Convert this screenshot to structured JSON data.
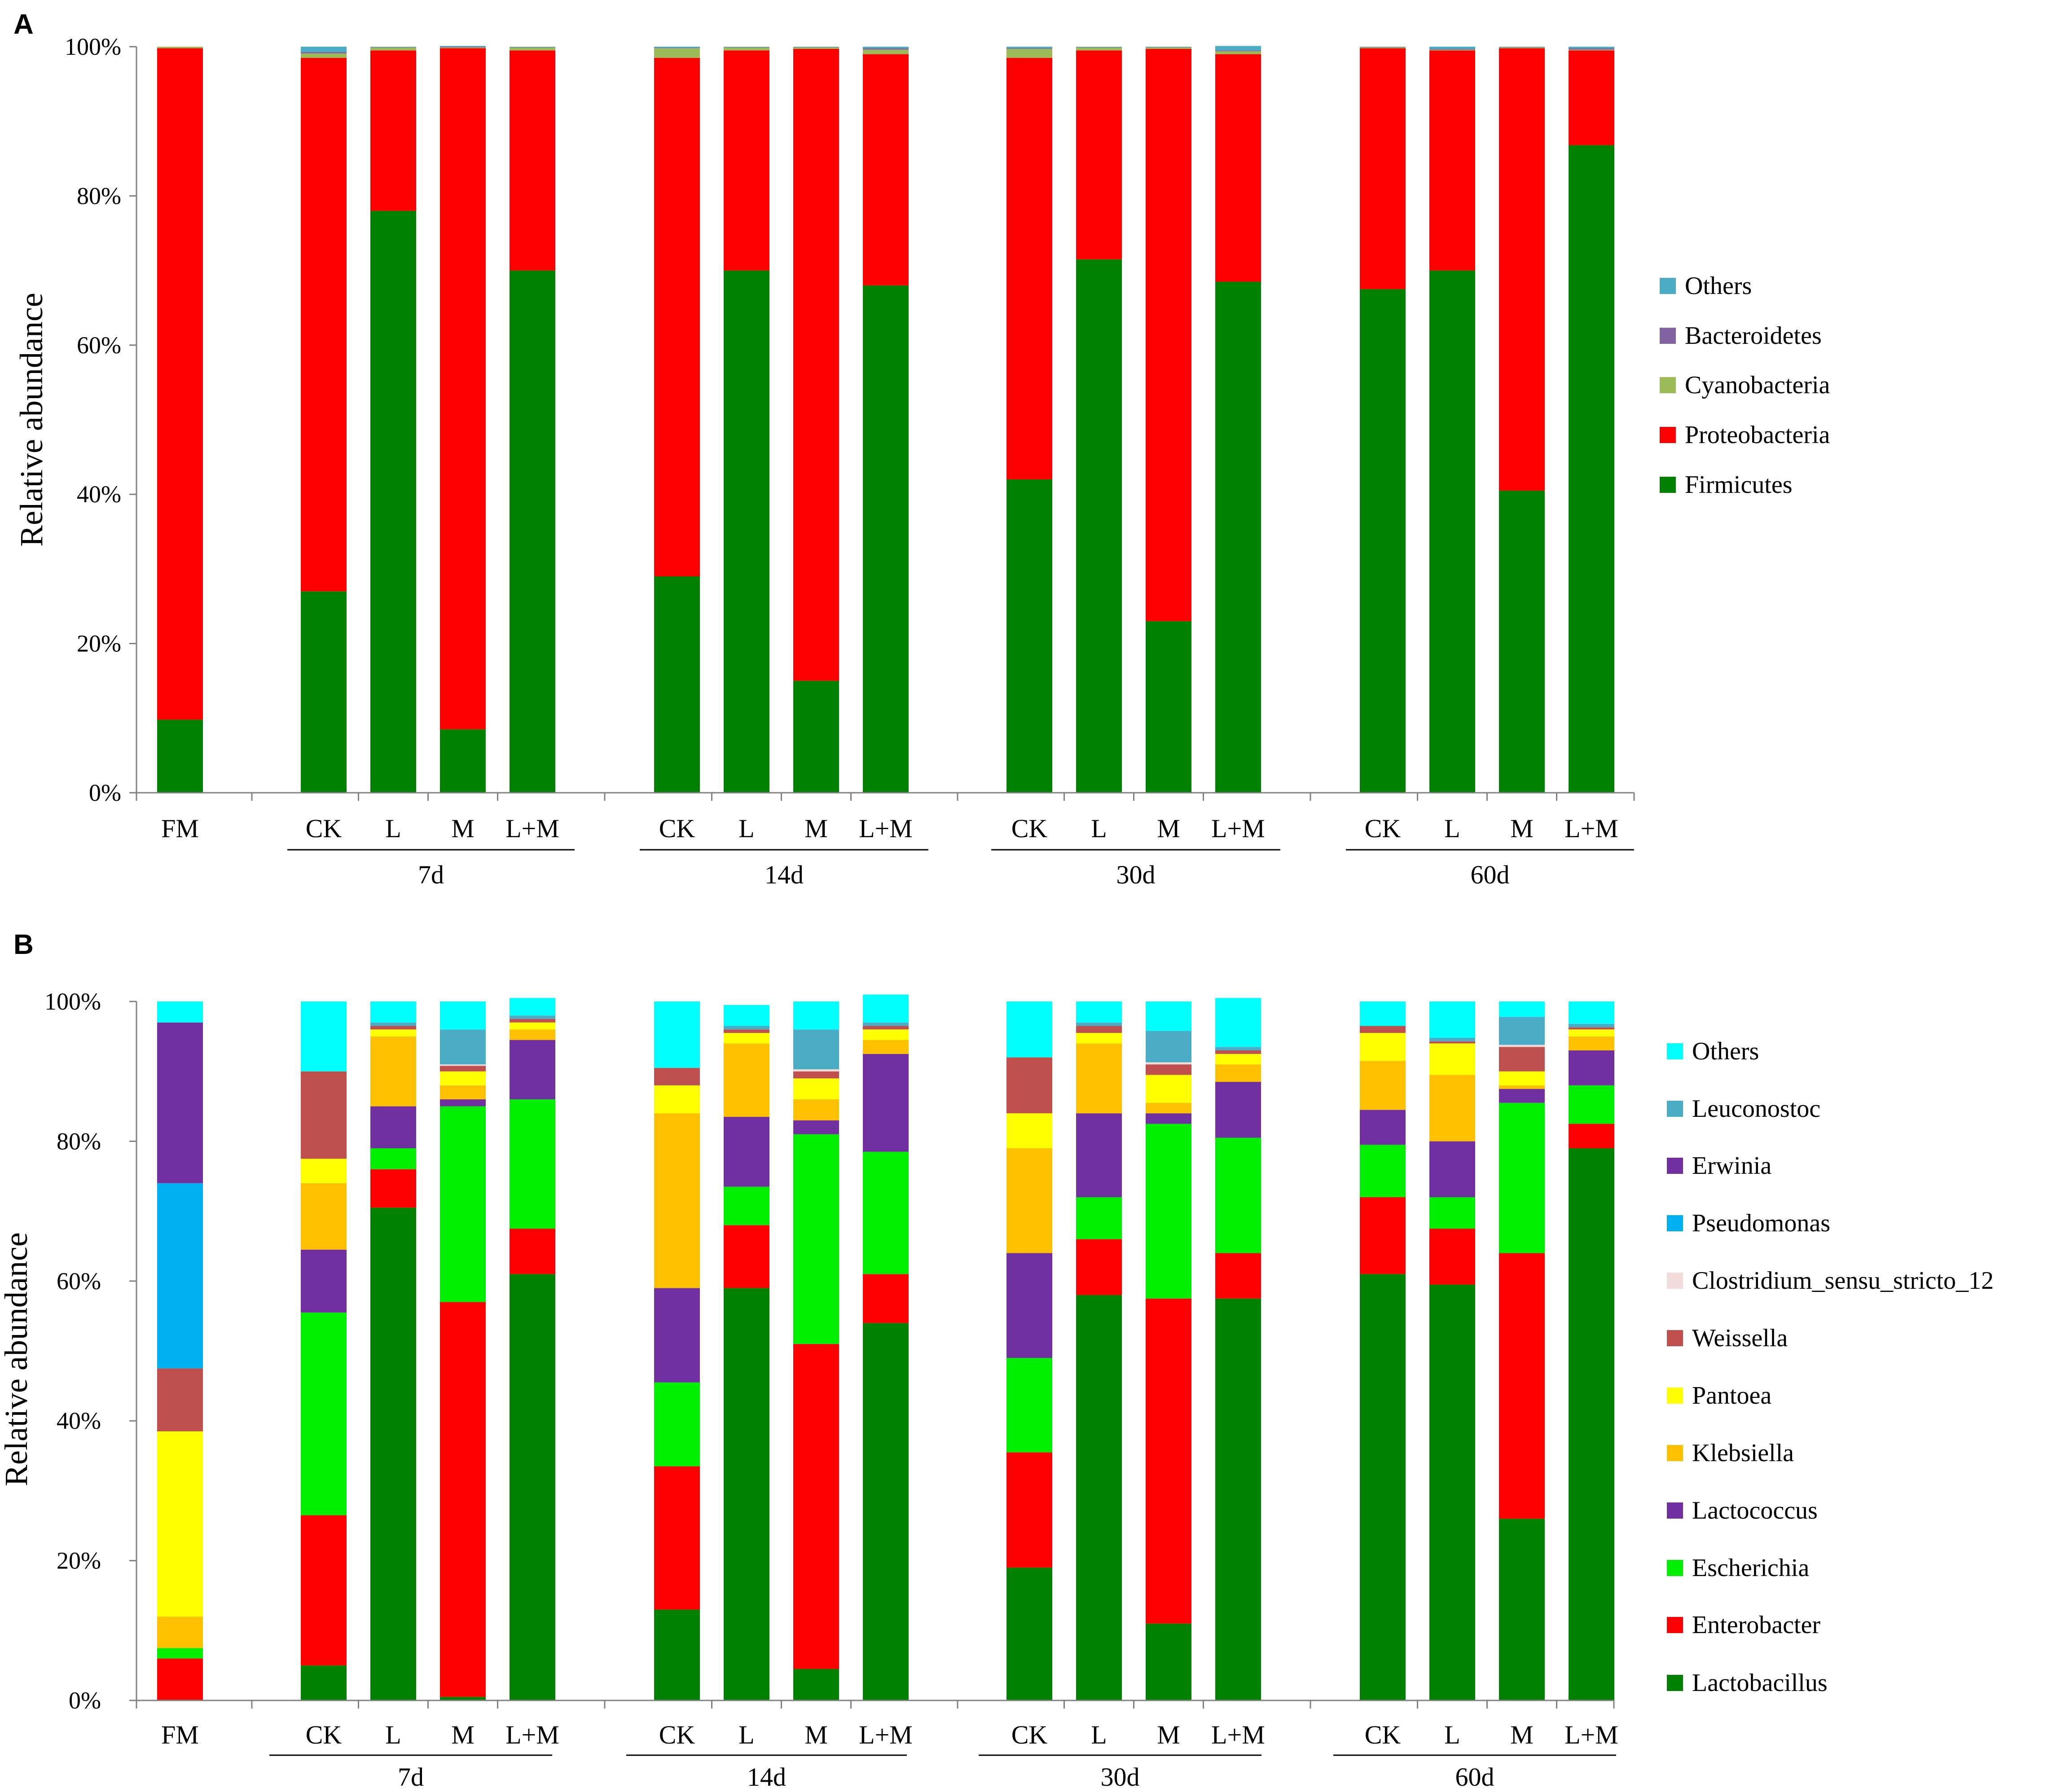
{
  "chart_data": [
    {
      "panel_label": "A",
      "type": "bar",
      "stacked": true,
      "ylabel": "Relative abundance",
      "ylim": [
        0,
        100
      ],
      "yticks": [
        "0%",
        "20%",
        "40%",
        "60%",
        "80%",
        "100%"
      ],
      "categories": [
        "FM",
        "CK",
        "L",
        "M",
        "L+M",
        "CK",
        "L",
        "M",
        "L+M",
        "CK",
        "L",
        "M",
        "L+M",
        "CK",
        "L",
        "M",
        "L+M"
      ],
      "groups": [
        {
          "label": "",
          "members": [
            0
          ]
        },
        {
          "label": "7d",
          "members": [
            1,
            2,
            3,
            4
          ]
        },
        {
          "label": "14d",
          "members": [
            5,
            6,
            7,
            8
          ]
        },
        {
          "label": "30d",
          "members": [
            9,
            10,
            11,
            12
          ]
        },
        {
          "label": "60d",
          "members": [
            13,
            14,
            15,
            16
          ]
        }
      ],
      "legend_position": "right",
      "legend_order": [
        "Others",
        "Bacteroidetes",
        "Cyanobacteria",
        "Proteobacteria",
        "Firmicutes"
      ],
      "series": [
        {
          "name": "Firmicutes",
          "color": "#008000",
          "values": [
            9.8,
            27,
            78,
            8.5,
            70,
            29,
            70,
            15,
            68,
            42,
            71.5,
            23,
            68.5,
            67.5,
            70,
            40.5,
            86.8
          ]
        },
        {
          "name": "Proteobacteria",
          "color": "#ff0000",
          "values": [
            90,
            71.5,
            21.5,
            91.3,
            29.5,
            69.5,
            29.5,
            84.7,
            31,
            56.5,
            28,
            76.7,
            30.5,
            32.3,
            29.5,
            59.3,
            12.7
          ]
        },
        {
          "name": "Cyanobacteria",
          "color": "#9bbb59",
          "values": [
            0.2,
            0.6,
            0.4,
            0.1,
            0.4,
            1.3,
            0.4,
            0.2,
            0.6,
            1.2,
            0.4,
            0.2,
            0.4,
            0.1,
            0.1,
            0.1,
            0.1
          ]
        },
        {
          "name": "Bacteroidetes",
          "color": "#8064a2",
          "values": [
            0,
            0.2,
            0.05,
            0.1,
            0.05,
            0.05,
            0.05,
            0.05,
            0.2,
            0.1,
            0.05,
            0.05,
            0.1,
            0.05,
            0.1,
            0.05,
            0.2
          ]
        },
        {
          "name": "Others",
          "color": "#4bacc6",
          "values": [
            0,
            0.7,
            0.05,
            0.1,
            0.05,
            0.15,
            0.05,
            0.05,
            0.2,
            0.2,
            0.05,
            0.05,
            0.6,
            0.05,
            0.3,
            0.05,
            0.2
          ]
        }
      ]
    },
    {
      "panel_label": "B",
      "type": "bar",
      "stacked": true,
      "ylabel": "Relative abundance",
      "ylim": [
        0,
        100
      ],
      "yticks": [
        "0%",
        "20%",
        "40%",
        "60%",
        "80%",
        "100%"
      ],
      "categories": [
        "FM",
        "CK",
        "L",
        "M",
        "L+M",
        "CK",
        "L",
        "M",
        "L+M",
        "CK",
        "L",
        "M",
        "L+M",
        "CK",
        "L",
        "M",
        "L+M"
      ],
      "groups": [
        {
          "label": "",
          "members": [
            0
          ]
        },
        {
          "label": "7d",
          "members": [
            1,
            2,
            3,
            4
          ]
        },
        {
          "label": "14d",
          "members": [
            5,
            6,
            7,
            8
          ]
        },
        {
          "label": "30d",
          "members": [
            9,
            10,
            11,
            12
          ]
        },
        {
          "label": "60d",
          "members": [
            13,
            14,
            15,
            16
          ]
        }
      ],
      "legend_position": "right",
      "legend_order": [
        "Others",
        "Leuconostoc",
        "Erwinia",
        "Pseudomonas",
        "Clostridium_sensu_stricto_12",
        "Weissella",
        "Pantoea",
        "Klebsiella",
        "Lactococcus",
        "Escherichia",
        "Enterobacter",
        "Lactobacillus"
      ],
      "series": [
        {
          "name": "Lactobacillus",
          "color": "#008000",
          "values": [
            0,
            5,
            70.5,
            0.5,
            61,
            13,
            59,
            4.5,
            54,
            19,
            58,
            11,
            57.5,
            61,
            59.5,
            26,
            79
          ]
        },
        {
          "name": "Enterobacter",
          "color": "#ff0000",
          "values": [
            6,
            21.5,
            5.5,
            56.5,
            6.5,
            20.5,
            9,
            46.5,
            7,
            16.5,
            8,
            46.5,
            6.5,
            11,
            8,
            38,
            3.5
          ]
        },
        {
          "name": "Escherichia",
          "color": "#00ee00",
          "values": [
            1.5,
            29,
            3,
            28,
            18.5,
            12,
            5.5,
            30,
            17.5,
            13.5,
            6,
            25,
            16.5,
            7.5,
            4.5,
            21.5,
            5.5
          ]
        },
        {
          "name": "Lactococcus",
          "color": "#7030a0",
          "values": [
            0,
            9,
            6,
            1,
            8.5,
            13.5,
            10,
            2,
            14,
            15,
            12,
            1.5,
            8,
            5,
            8,
            2,
            5
          ]
        },
        {
          "name": "Klebsiella",
          "color": "#ffc000",
          "values": [
            4.5,
            9.5,
            10,
            2,
            1.5,
            25,
            10.5,
            3,
            2,
            15,
            10,
            1.5,
            2.5,
            7,
            9.5,
            0.5,
            2
          ]
        },
        {
          "name": "Pantoea",
          "color": "#ffff00",
          "values": [
            26.5,
            3.5,
            1,
            2,
            1,
            4,
            1.5,
            3,
            1.5,
            5,
            1.5,
            4,
            1.5,
            4,
            4.5,
            2,
            1
          ]
        },
        {
          "name": "Weissella",
          "color": "#c0504d",
          "values": [
            9,
            12.5,
            0.5,
            0.8,
            0.5,
            2.5,
            0.5,
            1,
            0.5,
            8,
            1,
            1.5,
            0.5,
            1,
            0.3,
            3.5,
            0.3
          ]
        },
        {
          "name": "Clostridium_sensu_stricto_12",
          "color": "#f2dcdb",
          "values": [
            0,
            0,
            0,
            0.2,
            0,
            0,
            0,
            0.3,
            0,
            0,
            0,
            0.3,
            0,
            0,
            0,
            0.3,
            0
          ]
        },
        {
          "name": "Pseudomonas",
          "color": "#00b0f0",
          "values": [
            26.5,
            0,
            0,
            0,
            0,
            0,
            0,
            0,
            0,
            0,
            0,
            0,
            0,
            0,
            0,
            0,
            0
          ]
        },
        {
          "name": "Erwinia",
          "color": "#7030a0",
          "values": [
            23,
            0,
            0,
            0,
            0,
            0,
            0,
            0,
            0,
            0,
            0,
            0,
            0,
            0,
            0,
            0,
            0
          ]
        },
        {
          "name": "Leuconostoc",
          "color": "#4bacc6",
          "values": [
            0,
            0,
            0.5,
            5,
            0.5,
            0,
            0.5,
            5.7,
            0.5,
            0,
            0.5,
            4.5,
            0.5,
            0,
            0.5,
            4,
            0.5
          ]
        },
        {
          "name": "Others",
          "color": "#00ffff",
          "values": [
            3,
            10,
            3,
            4,
            2.5,
            9.5,
            3,
            4,
            4,
            8,
            3,
            4.2,
            7,
            3.5,
            5.2,
            2.2,
            3.2
          ]
        }
      ]
    }
  ]
}
